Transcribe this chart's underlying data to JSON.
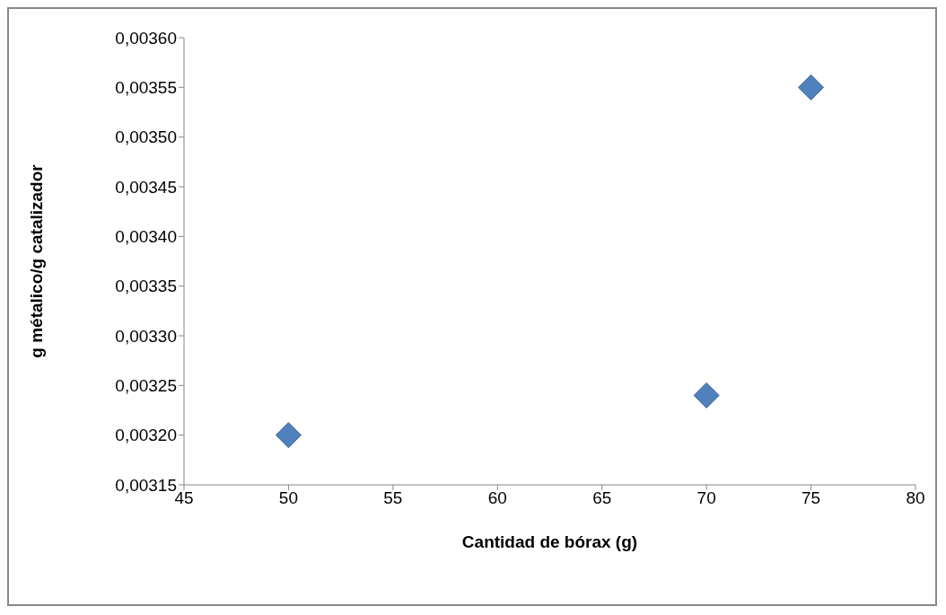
{
  "chart_data": {
    "type": "scatter",
    "xlabel": "Cantidad de bórax (g)",
    "ylabel": "g métalico/g catalizador",
    "x": [
      50,
      70,
      75
    ],
    "values": [
      0.0032,
      0.00324,
      0.00355
    ],
    "color": "#4f81bd",
    "marker": "diamond",
    "grid": false,
    "legend": false,
    "xlim": [
      45,
      80
    ],
    "xticks": [
      45,
      50,
      55,
      60,
      65,
      70,
      75,
      80
    ],
    "ylim": [
      0.00315,
      0.0036
    ],
    "yticks": [
      {
        "value": 0.00315,
        "label": "0,00315"
      },
      {
        "value": 0.0032,
        "label": "0,00320"
      },
      {
        "value": 0.00325,
        "label": "0,00325"
      },
      {
        "value": 0.0033,
        "label": "0,00330"
      },
      {
        "value": 0.00335,
        "label": "0,00335"
      },
      {
        "value": 0.0034,
        "label": "0,00340"
      },
      {
        "value": 0.00345,
        "label": "0,00345"
      },
      {
        "value": 0.0035,
        "label": "0,00350"
      },
      {
        "value": 0.00355,
        "label": "0,00355"
      },
      {
        "value": 0.0036,
        "label": "0,00360"
      }
    ]
  }
}
